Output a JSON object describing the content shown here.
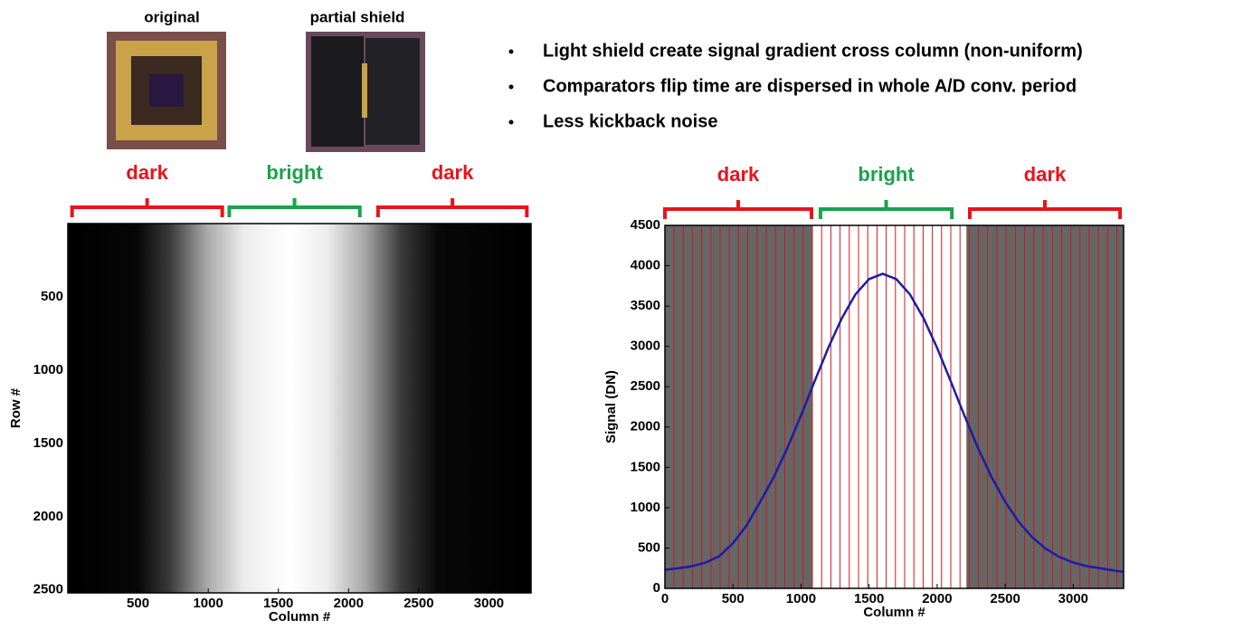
{
  "photos": [
    {
      "label": "original"
    },
    {
      "label": "partial shield"
    }
  ],
  "bullets": [
    "Light shield create signal gradient cross column (non-uniform)",
    "Comparators flip time are dispersed in whole A/D conv. period",
    "Less kickback noise"
  ],
  "chart_data": [
    {
      "type": "image",
      "xlabel": "Column #",
      "ylabel": "Row #",
      "xlim": [
        0,
        3300
      ],
      "ylim": [
        0,
        2520
      ],
      "yreverse": true,
      "xticks": [
        500,
        1000,
        1500,
        2000,
        2500,
        3000
      ],
      "yticks": [
        500,
        1000,
        1500,
        2000,
        2500
      ],
      "regions": [
        {
          "label": "dark",
          "color": "#e8141c",
          "start": 30,
          "end": 1100
        },
        {
          "label": "bright",
          "color": "#1aa34a",
          "start": 1150,
          "end": 2080
        },
        {
          "label": "dark",
          "color": "#e8141c",
          "start": 2210,
          "end": 3270
        }
      ]
    },
    {
      "type": "line",
      "xlabel": "Column #",
      "ylabel": "Signal (DN)",
      "xlim": [
        0,
        3370
      ],
      "ylim": [
        0,
        4500
      ],
      "xticks": [
        0,
        500,
        1000,
        1500,
        2000,
        2500,
        3000
      ],
      "yticks": [
        0,
        500,
        1000,
        1500,
        2000,
        2500,
        3000,
        3500,
        4000,
        4500
      ],
      "bands": [
        {
          "start": 0,
          "end": 1080,
          "fill": "#666666"
        },
        {
          "start": 2215,
          "end": 3370,
          "fill": "#666666"
        }
      ],
      "regions": [
        {
          "label": "dark",
          "color": "#e8141c",
          "start": 0,
          "end": 1077
        },
        {
          "label": "bright",
          "color": "#1aa34a",
          "start": 1143,
          "end": 2108
        },
        {
          "label": "dark",
          "color": "#e8141c",
          "start": 2240,
          "end": 3344
        }
      ],
      "x": [
        0,
        100,
        200,
        300,
        400,
        500,
        600,
        700,
        800,
        900,
        1000,
        1100,
        1200,
        1300,
        1400,
        1500,
        1600,
        1700,
        1800,
        1900,
        2000,
        2100,
        2200,
        2300,
        2400,
        2500,
        2600,
        2700,
        2800,
        2900,
        3000,
        3100,
        3200,
        3300,
        3370
      ],
      "series": [
        {
          "color": "#1c1ca8",
          "values": [
            230,
            250,
            275,
            320,
            400,
            560,
            780,
            1073,
            1380,
            1741,
            2144,
            2568,
            2981,
            3350,
            3645,
            3834,
            3900,
            3834,
            3645,
            3350,
            2981,
            2568,
            2144,
            1741,
            1380,
            1073,
            823,
            631,
            489,
            388,
            320,
            275,
            250,
            220,
            205
          ]
        }
      ]
    }
  ]
}
